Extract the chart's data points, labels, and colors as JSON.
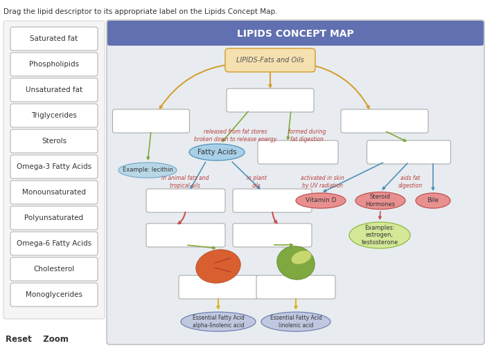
{
  "title": "LIPIDS CONCEPT MAP",
  "instruction": "Drag the lipid descriptor to its appropriate label on the Lipids Concept Map.",
  "left_boxes": [
    "Saturated fat",
    "Phospholipids",
    "Unsaturated fat",
    "Triglycerides",
    "Sterols",
    "Omega-3 Fatty Acids",
    "Monounsaturated",
    "Polyunsaturated",
    "Omega-6 Fatty Acids",
    "Cholesterol",
    "Monoglycerides"
  ],
  "header_color": "#6070b0",
  "header_text_color": "#ffffff",
  "map_bg": "#e8ecf0",
  "central_node_text": "LIPIDS-Fats and Oils",
  "central_node_fc": "#f5e0b0",
  "central_node_ec": "#d4a840",
  "fatty_acids_fc": "#a8d0e8",
  "fatty_acids_ec": "#5090b8",
  "lecithin_fc": "#b8d8e8",
  "lecithin_ec": "#7aaac8",
  "vitd_fc": "#e89090",
  "vitd_ec": "#c05050",
  "steroid_fc": "#e89090",
  "steroid_ec": "#c05050",
  "bile_fc": "#e89090",
  "bile_ec": "#c05050",
  "estrogen_fc": "#d4e898",
  "estrogen_ec": "#90b840",
  "efa_fc": "#c0c8e0",
  "efa_ec": "#7080b0",
  "orange_arrow": "#d4a030",
  "green_arrow": "#80a838",
  "blue_arrow": "#5090b8",
  "red_arrow": "#c85050",
  "yellow_arrow": "#d4b820",
  "ann_color": "#b84040",
  "reset_zoom_text": "Reset    Zoom"
}
